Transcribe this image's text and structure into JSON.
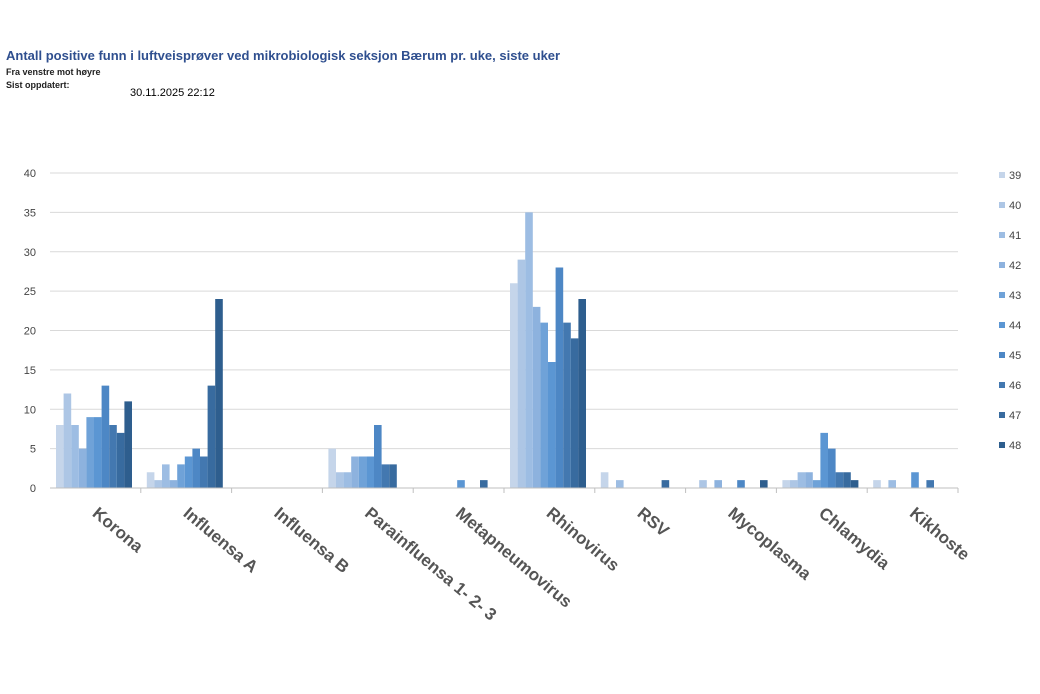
{
  "header": {
    "title": "Antall positive funn i luftveisprøver ved mikrobiologisk seksjon Bærum pr. uke, siste uker",
    "subtitle": "Fra venstre mot høyre",
    "updated_label": "Sist oppdatert:",
    "updated_value": "30.11.2025 22:12"
  },
  "chart_data": {
    "type": "bar",
    "title": "Antall positive funn i luftveisprøver ved mikrobiologisk seksjon Bærum pr. uke, siste uker",
    "xlabel": "",
    "ylabel": "",
    "ylim": [
      0,
      40
    ],
    "yticks": [
      "0",
      "5",
      "10",
      "15",
      "20",
      "25",
      "30",
      "35",
      "40"
    ],
    "grid": true,
    "legend_position": "right",
    "categories": [
      "Korona",
      "Influensa A",
      "Influensa B",
      "Parainfluensa 1- 2- 3",
      "Metapneumovirus",
      "Rhinovirus",
      "RSV",
      "Mycoplasma",
      "Chlamydia",
      "Kikhoste"
    ],
    "series": [
      {
        "name": "39",
        "color": "#c5d5ea",
        "values": [
          8,
          2,
          0,
          5,
          0,
          26,
          2,
          0,
          1,
          1
        ]
      },
      {
        "name": "40",
        "color": "#adc6e5",
        "values": [
          12,
          1,
          0,
          2,
          0,
          29,
          0,
          1,
          1,
          0
        ]
      },
      {
        "name": "41",
        "color": "#9dbde3",
        "values": [
          8,
          3,
          0,
          2,
          0,
          35,
          1,
          0,
          2,
          1
        ]
      },
      {
        "name": "42",
        "color": "#8db2de",
        "values": [
          5,
          1,
          0,
          4,
          0,
          23,
          0,
          1,
          2,
          0
        ]
      },
      {
        "name": "43",
        "color": "#6fa2d8",
        "values": [
          9,
          3,
          0,
          4,
          0,
          21,
          0,
          0,
          1,
          0
        ]
      },
      {
        "name": "44",
        "color": "#5b96d3",
        "values": [
          9,
          4,
          0,
          4,
          1,
          16,
          0,
          0,
          7,
          2
        ]
      },
      {
        "name": "45",
        "color": "#4d87c5",
        "values": [
          13,
          5,
          0,
          8,
          0,
          28,
          0,
          1,
          5,
          0
        ]
      },
      {
        "name": "46",
        "color": "#4378b0",
        "values": [
          8,
          4,
          0,
          3,
          0,
          21,
          0,
          0,
          2,
          1
        ]
      },
      {
        "name": "47",
        "color": "#386b9f",
        "values": [
          7,
          13,
          0,
          3,
          1,
          19,
          1,
          0,
          2,
          0
        ]
      },
      {
        "name": "48",
        "color": "#2e5e8e",
        "values": [
          11,
          24,
          0,
          0,
          0,
          24,
          0,
          1,
          1,
          0
        ]
      }
    ]
  }
}
